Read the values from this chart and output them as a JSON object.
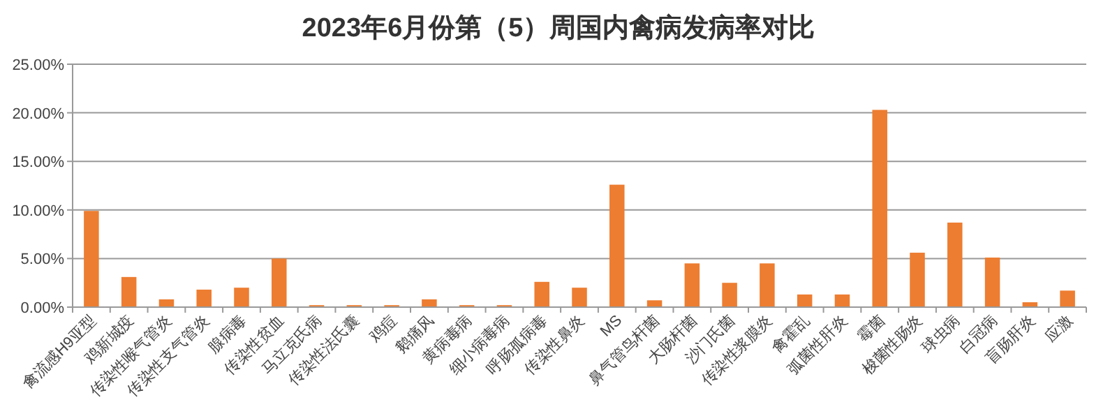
{
  "chart_data": {
    "type": "bar",
    "title": "2023年6月份第（5）周国内禽病发病率对比",
    "categories": [
      "禽流感H9亚型",
      "鸡新城疫",
      "传染性喉气管炎",
      "传染性支气管炎",
      "腺病毒",
      "传染性贫血",
      "马立克氏病",
      "传染性法氏囊",
      "鸡痘",
      "鹅痛风",
      "黄病毒病",
      "细小病毒病",
      "呼肠孤病毒",
      "传染性鼻炎",
      "MS",
      "鼻气管鸟杆菌",
      "大肠杆菌",
      "沙门氏菌",
      "传染性浆膜炎",
      "禽霍乱",
      "弧菌性肝炎",
      "霉菌",
      "梭菌性肠炎",
      "球虫病",
      "白冠病",
      "盲肠肝炎",
      "应激"
    ],
    "values": [
      9.9,
      3.1,
      0.8,
      1.8,
      2.0,
      5.0,
      0.2,
      0.2,
      0.2,
      0.8,
      0.2,
      0.2,
      2.6,
      2.0,
      12.6,
      0.7,
      4.5,
      2.5,
      4.5,
      1.3,
      1.3,
      20.3,
      5.6,
      8.7,
      5.1,
      0.5,
      1.7
    ],
    "color": "#ed7d31",
    "ylim": [
      0,
      25
    ],
    "yticks": [
      {
        "value": 0,
        "label": "0.00%"
      },
      {
        "value": 5,
        "label": "5.00%"
      },
      {
        "value": 10,
        "label": "10.00%"
      },
      {
        "value": 15,
        "label": "15.00%"
      },
      {
        "value": 20,
        "label": "20.00%"
      },
      {
        "value": 25,
        "label": "25.00%"
      }
    ],
    "grid": "y"
  }
}
